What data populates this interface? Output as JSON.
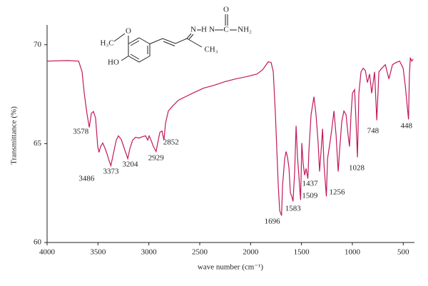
{
  "chart_data": {
    "type": "line",
    "xlabel": "wave number (cm⁻¹)",
    "ylabel": "Transmittance (%)",
    "xlim": [
      4000,
      390
    ],
    "ylim": [
      60,
      71
    ],
    "xticks": [
      4000,
      3500,
      3000,
      2500,
      2000,
      1500,
      1000,
      500
    ],
    "yticks": [
      60,
      65,
      70
    ],
    "series": [
      {
        "color": "#c2185b",
        "x": [
          4000,
          3800,
          3690,
          3656,
          3635,
          3607,
          3585,
          3565,
          3544,
          3523,
          3502,
          3490,
          3474,
          3453,
          3432,
          3411,
          3390,
          3373,
          3341,
          3320,
          3299,
          3271,
          3243,
          3207,
          3187,
          3159,
          3130,
          3095,
          3060,
          3032,
          3011,
          2997,
          2976,
          2955,
          2929,
          2913,
          2892,
          2871,
          2852,
          2836,
          2808,
          2766,
          2710,
          2640,
          2570,
          2464,
          2359,
          2254,
          2149,
          2043,
          1938,
          1882,
          1826,
          1798,
          1777,
          1756,
          1742,
          1728,
          1714,
          1696,
          1686,
          1665,
          1651,
          1637,
          1623,
          1609,
          1595,
          1583,
          1567,
          1553,
          1539,
          1509,
          1497,
          1483,
          1469,
          1455,
          1437,
          1427,
          1406,
          1378,
          1357,
          1336,
          1322,
          1307,
          1293,
          1279,
          1256,
          1244,
          1223,
          1202,
          1181,
          1160,
          1139,
          1125,
          1104,
          1083,
          1062,
          1041,
          1028,
          1013,
          999,
          978,
          964,
          950,
          936,
          915,
          894,
          873,
          852,
          831,
          810,
          782,
          760,
          739,
          711,
          676,
          641,
          606,
          571,
          536,
          501,
          480,
          448,
          440,
          431,
          417,
          402
        ],
        "values": [
          69.17,
          69.2,
          69.17,
          68.63,
          67.55,
          66.47,
          65.82,
          66.54,
          66.62,
          66.29,
          64.85,
          64.56,
          64.85,
          65.03,
          64.78,
          64.49,
          64.13,
          63.88,
          64.67,
          65.18,
          65.39,
          65.21,
          64.78,
          64.24,
          64.74,
          65.18,
          65.32,
          65.28,
          65.36,
          65.39,
          65.18,
          65.39,
          65.14,
          64.85,
          64.6,
          65.03,
          65.57,
          65.64,
          65.18,
          66.04,
          66.65,
          66.9,
          67.19,
          67.37,
          67.55,
          67.8,
          67.95,
          68.13,
          68.27,
          68.38,
          68.52,
          68.74,
          69.14,
          69.1,
          68.63,
          66.47,
          64.67,
          62.87,
          61.61,
          61.36,
          62.87,
          64.24,
          64.6,
          64.31,
          63.77,
          62.51,
          62.33,
          62.08,
          63.59,
          65.9,
          64.31,
          62.15,
          65.03,
          63.95,
          63.41,
          63.74,
          63.23,
          64.67,
          66.47,
          67.37,
          66.47,
          65.03,
          63.59,
          64.67,
          65.75,
          63.95,
          62.33,
          64.24,
          64.96,
          65.75,
          66.65,
          65.39,
          63.59,
          64.67,
          66.11,
          66.65,
          66.47,
          65.39,
          64.85,
          66.47,
          67.55,
          67.73,
          66.11,
          64.31,
          67.55,
          68.63,
          68.81,
          68.7,
          68.09,
          68.52,
          67.55,
          68.63,
          66.18,
          68.63,
          68.81,
          68.99,
          68.27,
          68.99,
          69.1,
          69.17,
          68.81,
          67.91,
          66.22,
          68.45,
          69.35,
          69.17,
          69.28
        ]
      }
    ],
    "peaks": [
      3578,
      3486,
      3373,
      3204,
      2929,
      2852,
      1696,
      1583,
      1509,
      1437,
      1256,
      1028,
      748,
      448
    ],
    "structure_labels": [
      "H₃C",
      "O",
      "HO",
      "N",
      "H",
      "N",
      "C",
      "O",
      "NH₂",
      "CH₃"
    ]
  }
}
